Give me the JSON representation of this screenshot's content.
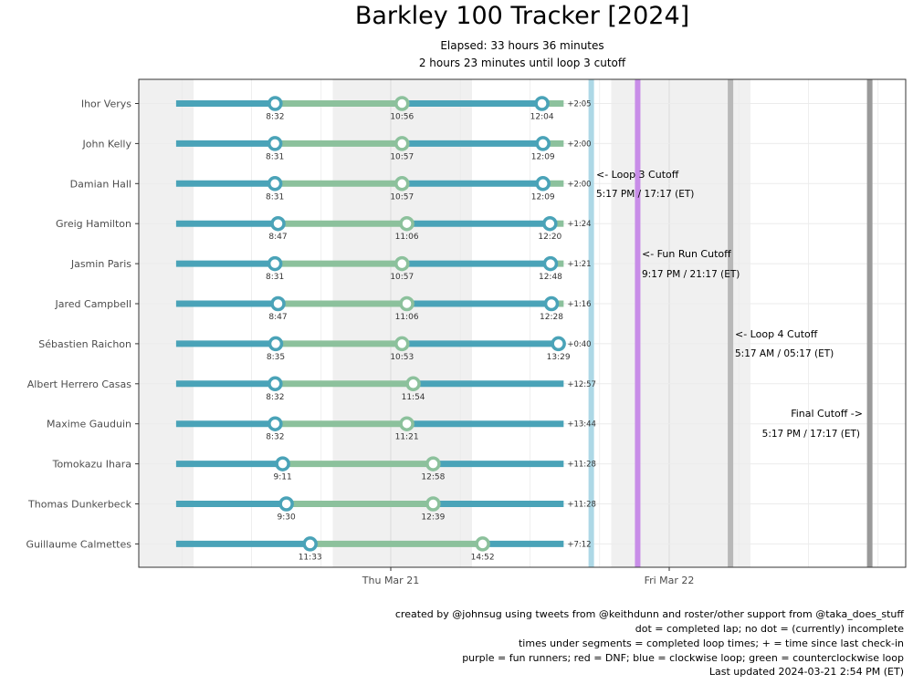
{
  "chart_data": {
    "type": "timeline",
    "title": "Barkley 100 Tracker [2024]",
    "subtitle": [
      "Elapsed: 33 hours 36 minutes",
      "2 hours 23 minutes until loop 3 cutoff"
    ],
    "x_ticks": [
      "Thu Mar 21",
      "Fri Mar 22"
    ],
    "runners": [
      {
        "name": "Ihor Verys",
        "loops": [
          "8:32",
          "10:56",
          "12:04"
        ],
        "since": "+2:05",
        "completed": [
          true,
          true,
          true
        ]
      },
      {
        "name": "John Kelly",
        "loops": [
          "8:31",
          "10:57",
          "12:09"
        ],
        "since": "+2:00",
        "completed": [
          true,
          true,
          true
        ]
      },
      {
        "name": "Damian Hall",
        "loops": [
          "8:31",
          "10:57",
          "12:09"
        ],
        "since": "+2:00",
        "completed": [
          true,
          true,
          true
        ]
      },
      {
        "name": "Greig Hamilton",
        "loops": [
          "8:47",
          "11:06",
          "12:20"
        ],
        "since": "+1:24",
        "completed": [
          true,
          true,
          true
        ]
      },
      {
        "name": "Jasmin Paris",
        "loops": [
          "8:31",
          "10:57",
          "12:48"
        ],
        "since": "+1:21",
        "completed": [
          true,
          true,
          true
        ]
      },
      {
        "name": "Jared Campbell",
        "loops": [
          "8:47",
          "11:06",
          "12:28"
        ],
        "since": "+1:16",
        "completed": [
          true,
          true,
          true
        ]
      },
      {
        "name": "Sébastien Raichon",
        "loops": [
          "8:35",
          "10:53",
          "13:29"
        ],
        "since": "+0:40",
        "completed": [
          true,
          true,
          true
        ]
      },
      {
        "name": "Albert Herrero Casas",
        "loops": [
          "8:32",
          "11:54"
        ],
        "since": "+12:57",
        "completed": [
          true,
          true
        ]
      },
      {
        "name": "Maxime Gauduin",
        "loops": [
          "8:32",
          "11:21"
        ],
        "since": "+13:44",
        "completed": [
          true,
          true
        ]
      },
      {
        "name": "Tomokazu Ihara",
        "loops": [
          "9:11",
          "12:58"
        ],
        "since": "+11:28",
        "completed": [
          true,
          true
        ]
      },
      {
        "name": "Thomas Dunkerbeck",
        "loops": [
          "9:30",
          "12:39"
        ],
        "since": "+11:28",
        "completed": [
          true,
          true
        ]
      },
      {
        "name": "Guillaume Calmettes",
        "loops": [
          "11:33",
          "14:52"
        ],
        "since": "+7:12",
        "completed": [
          true,
          true
        ]
      }
    ],
    "cutoffs": [
      {
        "label": "<- Loop 3 Cutoff",
        "time": "5:17 PM / 17:17 (ET)",
        "color": "#add8e6"
      },
      {
        "label": "<- Fun Run Cutoff",
        "time": "9:17 PM / 21:17 (ET)",
        "color": "#c88de8"
      },
      {
        "label": "<- Loop 4 Cutoff",
        "time": "5:17 AM / 05:17 (ET)",
        "color": "#b8b8b8"
      },
      {
        "label": "Final Cutoff ->",
        "time": "5:17 PM / 17:17 (ET)",
        "color": "#9a9a9a"
      }
    ],
    "colors": {
      "clockwise": "#4aa3b8",
      "counterclockwise": "#8cc19c",
      "night_band": "#f0f0f0"
    }
  },
  "caption": [
    "created by @johnsug using tweets from @keithdunn and roster/other support from @taka_does_stuff",
    "dot = completed lap; no dot = (currently) incomplete",
    "times under segments = completed loop times; + = time since last check-in",
    "purple = fun runners; red = DNF; blue = clockwise loop; green = counterclockwise loop",
    "Last updated 2024-03-21 2:54 PM (ET)"
  ]
}
